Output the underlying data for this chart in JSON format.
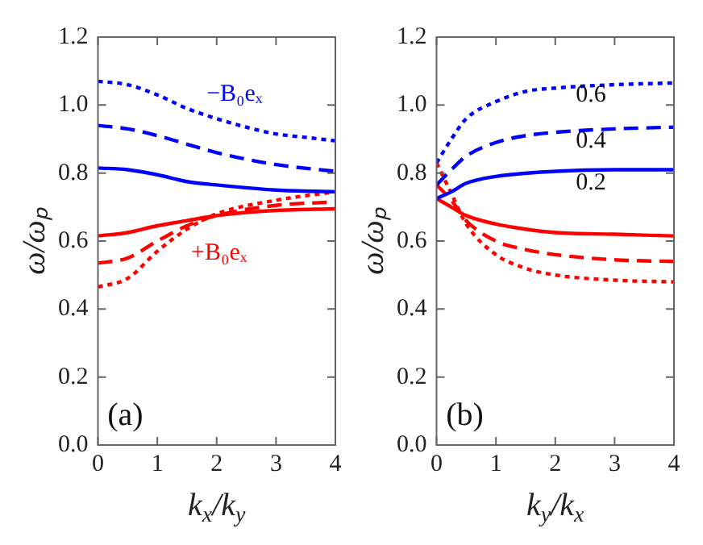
{
  "chart_data": [
    {
      "type": "line",
      "xlabel": "k$_{x}$/k$_{y}$",
      "ylabel": "ω/ωₚ",
      "xlim": [
        0,
        4
      ],
      "xticks": [
        0,
        1,
        2,
        3,
        4
      ],
      "ylim": [
        0,
        1.2
      ],
      "yticks": [
        {
          "value": 0,
          "label": "0.0"
        },
        {
          "value": 0.2,
          "label": "0.2"
        },
        {
          "value": 0.4,
          "label": "0.4"
        },
        {
          "value": 0.6,
          "label": "0.6"
        },
        {
          "value": 0.8,
          "label": "0.8"
        },
        {
          "value": 1,
          "label": "1.0"
        },
        {
          "value": 1.2,
          "label": "1.2"
        }
      ],
      "grid": false,
      "legend": false,
      "marker": "none",
      "series": [
        {
          "color": "#0000ff",
          "line_style": "dotted",
          "x": [
            0,
            0.5,
            1,
            1.5,
            2,
            2.5,
            3,
            3.5,
            4
          ],
          "values": [
            1.07,
            1.06,
            1.03,
            0.99,
            0.96,
            0.935,
            0.915,
            0.905,
            0.895
          ]
        },
        {
          "color": "#0000ff",
          "line_style": "dashed",
          "x": [
            0,
            0.5,
            1,
            1.5,
            2,
            3,
            4
          ],
          "values": [
            0.94,
            0.93,
            0.91,
            0.885,
            0.86,
            0.825,
            0.805
          ]
        },
        {
          "color": "#0000ff",
          "line_style": "solid",
          "x": [
            0,
            0.5,
            1,
            1.5,
            2,
            3,
            4
          ],
          "values": [
            0.815,
            0.81,
            0.795,
            0.775,
            0.765,
            0.75,
            0.745
          ]
        },
        {
          "color": "#ff0000",
          "line_style": "solid",
          "x": [
            0,
            0.5,
            1,
            1.5,
            2,
            3,
            4
          ],
          "values": [
            0.615,
            0.625,
            0.645,
            0.66,
            0.675,
            0.69,
            0.695
          ]
        },
        {
          "color": "#ff0000",
          "line_style": "dashed",
          "x": [
            0,
            0.5,
            1,
            1.5,
            2,
            3,
            4
          ],
          "values": [
            0.535,
            0.55,
            0.6,
            0.645,
            0.675,
            0.705,
            0.715
          ]
        },
        {
          "color": "#ff0000",
          "line_style": "dotted",
          "x": [
            0,
            0.5,
            1,
            1.5,
            2,
            3,
            4
          ],
          "values": [
            0.465,
            0.49,
            0.57,
            0.635,
            0.68,
            0.72,
            0.745
          ]
        }
      ],
      "annotations": [
        "−B₀eₓ",
        "+B₀eₓ",
        "(a)"
      ]
    },
    {
      "type": "line",
      "xlabel": "k$_{y}$/k$_{x}$",
      "ylabel": "ω/ωₚ",
      "xlim": [
        0,
        4
      ],
      "xticks": [
        0,
        1,
        2,
        3,
        4
      ],
      "ylim": [
        0,
        1.2
      ],
      "yticks": [
        {
          "value": 0,
          "label": "0.0"
        },
        {
          "value": 0.2,
          "label": "0.2"
        },
        {
          "value": 0.4,
          "label": "0.4"
        },
        {
          "value": 0.6,
          "label": "0.6"
        },
        {
          "value": 0.8,
          "label": "0.8"
        },
        {
          "value": 1,
          "label": "1.0"
        },
        {
          "value": 1.2,
          "label": "1.2"
        }
      ],
      "grid": false,
      "legend": false,
      "marker": "none",
      "series": [
        {
          "color": "#0000ff",
          "line_style": "dotted",
          "x": [
            0,
            0.25,
            0.5,
            1,
            1.5,
            2,
            3,
            4
          ],
          "values": [
            0.83,
            0.9,
            0.96,
            1.01,
            1.04,
            1.05,
            1.06,
            1.065
          ]
        },
        {
          "color": "#0000ff",
          "line_style": "dashed",
          "x": [
            0,
            0.25,
            0.5,
            1,
            1.5,
            2,
            3,
            4
          ],
          "values": [
            0.765,
            0.81,
            0.85,
            0.89,
            0.91,
            0.92,
            0.93,
            0.935
          ]
        },
        {
          "color": "#0000ff",
          "line_style": "solid",
          "x": [
            0,
            0.25,
            0.5,
            1,
            2,
            3,
            4
          ],
          "values": [
            0.725,
            0.745,
            0.77,
            0.79,
            0.805,
            0.81,
            0.81
          ]
        },
        {
          "color": "#ff0000",
          "line_style": "solid",
          "x": [
            0,
            0.25,
            0.5,
            1,
            1.5,
            2,
            3,
            4
          ],
          "values": [
            0.725,
            0.7,
            0.675,
            0.65,
            0.635,
            0.625,
            0.62,
            0.615
          ]
        },
        {
          "color": "#ff0000",
          "line_style": "dashed",
          "x": [
            0,
            0.25,
            0.5,
            1,
            1.5,
            2,
            3,
            4
          ],
          "values": [
            0.765,
            0.72,
            0.66,
            0.6,
            0.575,
            0.56,
            0.545,
            0.54
          ]
        },
        {
          "color": "#ff0000",
          "line_style": "dotted",
          "x": [
            0,
            0.25,
            0.5,
            1,
            1.5,
            2,
            3,
            4
          ],
          "values": [
            0.83,
            0.74,
            0.65,
            0.56,
            0.52,
            0.5,
            0.485,
            0.48
          ]
        }
      ],
      "annotations": [
        "0.6",
        "0.4",
        "0.2",
        "(b)"
      ]
    }
  ]
}
